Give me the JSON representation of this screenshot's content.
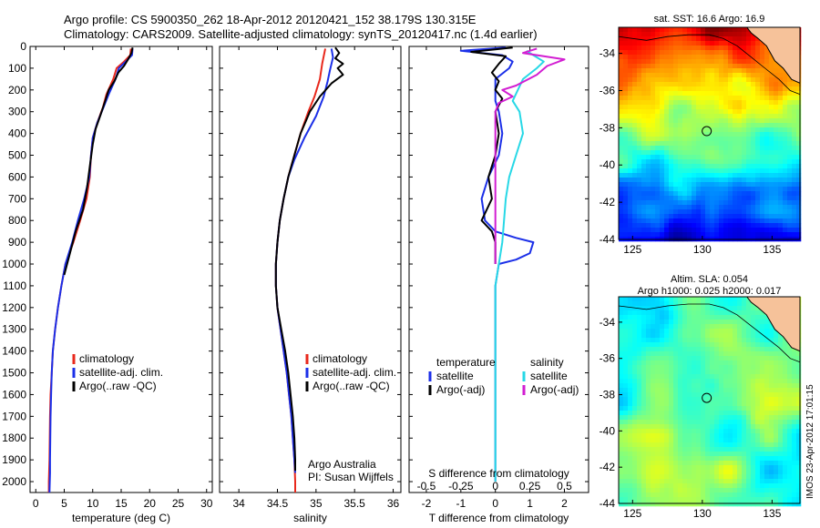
{
  "header": {
    "line1": "Argo profile: CS 5900350_262 18-Apr-2012 20120421_152 38.179S 130.315E",
    "line2": "Climatology: CARS2009. Satellite-adjusted climatology: synTS_20120417.nc (1.4d earlier)"
  },
  "side_label": "IMOS 23-Apr-2012 17:01:15",
  "colors": {
    "climatology": "#e8281c",
    "satellite": "#1b2fe8",
    "argo": "#000000",
    "sat_salinity": "#27d8e6",
    "argo_salinity": "#d21ed2",
    "land": "#f6c29a"
  },
  "chart_data": [
    {
      "type": "line",
      "id": "temperature",
      "xlabel": "temperature (deg C)",
      "ylabel": "",
      "xlim": [
        -1,
        31
      ],
      "ylim": [
        2050,
        0
      ],
      "xticks": [
        0,
        5,
        10,
        15,
        20,
        25,
        30
      ],
      "yticks": [
        0,
        100,
        200,
        300,
        400,
        500,
        600,
        700,
        800,
        900,
        1000,
        1100,
        1200,
        1300,
        1400,
        1500,
        1600,
        1700,
        1800,
        1900,
        2000
      ],
      "legend": [
        "climatology",
        "satellite-adj. clim.",
        "Argo(..raw -QC)"
      ],
      "series": [
        {
          "name": "climatology",
          "color": "#e8281c",
          "points": [
            [
              16.7,
              10
            ],
            [
              16.6,
              40
            ],
            [
              15.5,
              70
            ],
            [
              14.2,
              100
            ],
            [
              13.6,
              150
            ],
            [
              12.4,
              220
            ],
            [
              11.8,
              280
            ],
            [
              10.8,
              350
            ],
            [
              10.0,
              420
            ],
            [
              9.7,
              500
            ],
            [
              9.5,
              600
            ],
            [
              8.9,
              700
            ],
            [
              7.8,
              800
            ],
            [
              6.6,
              900
            ],
            [
              5.2,
              1000
            ],
            [
              4.5,
              1100
            ],
            [
              3.9,
              1200
            ],
            [
              3.4,
              1300
            ],
            [
              3.0,
              1400
            ],
            [
              2.8,
              1500
            ],
            [
              2.6,
              1600
            ],
            [
              2.5,
              1700
            ],
            [
              2.45,
              1800
            ],
            [
              2.4,
              1900
            ],
            [
              2.3,
              2000
            ],
            [
              2.3,
              2050
            ]
          ]
        },
        {
          "name": "satellite-adj. clim.",
          "color": "#1b2fe8",
          "points": [
            [
              17.0,
              10
            ],
            [
              16.9,
              40
            ],
            [
              15.8,
              70
            ],
            [
              14.6,
              100
            ],
            [
              14.0,
              150
            ],
            [
              12.8,
              220
            ],
            [
              11.9,
              280
            ],
            [
              10.8,
              350
            ],
            [
              10.0,
              420
            ],
            [
              9.7,
              500
            ],
            [
              9.4,
              600
            ],
            [
              8.5,
              700
            ],
            [
              7.4,
              800
            ],
            [
              6.4,
              900
            ],
            [
              5.2,
              1000
            ],
            [
              4.5,
              1100
            ],
            [
              3.9,
              1200
            ],
            [
              3.4,
              1300
            ],
            [
              3.0,
              1400
            ],
            [
              2.8,
              1500
            ],
            [
              2.7,
              1600
            ],
            [
              2.6,
              1700
            ],
            [
              2.55,
              1800
            ],
            [
              2.5,
              1900
            ],
            [
              2.5,
              1960
            ],
            [
              2.4,
              2050
            ]
          ]
        },
        {
          "name": "Argo(..raw -QC)",
          "color": "#000000",
          "points": [
            [
              17.0,
              5
            ],
            [
              16.8,
              30
            ],
            [
              16.2,
              60
            ],
            [
              15.5,
              90
            ],
            [
              14.5,
              120
            ],
            [
              13.8,
              160
            ],
            [
              12.8,
              200
            ],
            [
              12.2,
              250
            ],
            [
              11.3,
              320
            ],
            [
              10.5,
              380
            ],
            [
              10.0,
              450
            ],
            [
              9.5,
              550
            ],
            [
              9.0,
              650
            ],
            [
              8.3,
              750
            ],
            [
              7.0,
              850
            ],
            [
              6.0,
              950
            ],
            [
              5.0,
              1050
            ]
          ]
        }
      ]
    },
    {
      "type": "line",
      "id": "salinity",
      "xlabel": "salinity",
      "xlim": [
        33.75,
        36.1
      ],
      "ylim": [
        2050,
        0
      ],
      "xticks": [
        34,
        34.5,
        35,
        35.5,
        36
      ],
      "legend": [
        "climatology",
        "satellite-adj. clim.",
        "Argo(..raw -QC)"
      ],
      "annotations": [
        "Argo Australia",
        "PI: Susan Wijffels"
      ],
      "series": [
        {
          "name": "climatology",
          "color": "#e8281c",
          "points": [
            [
              35.12,
              10
            ],
            [
              35.08,
              80
            ],
            [
              35.05,
              150
            ],
            [
              34.98,
              230
            ],
            [
              34.9,
              300
            ],
            [
              34.8,
              400
            ],
            [
              34.72,
              500
            ],
            [
              34.64,
              600
            ],
            [
              34.58,
              700
            ],
            [
              34.53,
              800
            ],
            [
              34.5,
              900
            ],
            [
              34.48,
              1000
            ],
            [
              34.48,
              1100
            ],
            [
              34.5,
              1200
            ],
            [
              34.54,
              1300
            ],
            [
              34.58,
              1400
            ],
            [
              34.62,
              1500
            ],
            [
              34.65,
              1600
            ],
            [
              34.68,
              1700
            ],
            [
              34.7,
              1800
            ],
            [
              34.72,
              1900
            ],
            [
              34.73,
              2000
            ],
            [
              34.73,
              2050
            ]
          ]
        },
        {
          "name": "satellite-adj. clim.",
          "color": "#1b2fe8",
          "points": [
            [
              35.2,
              10
            ],
            [
              35.22,
              50
            ],
            [
              35.18,
              110
            ],
            [
              35.15,
              160
            ],
            [
              35.1,
              230
            ],
            [
              35.0,
              320
            ],
            [
              34.85,
              420
            ],
            [
              34.72,
              520
            ],
            [
              34.64,
              600
            ],
            [
              34.58,
              700
            ],
            [
              34.53,
              800
            ],
            [
              34.5,
              900
            ],
            [
              34.48,
              1000
            ],
            [
              34.48,
              1100
            ],
            [
              34.5,
              1200
            ],
            [
              34.54,
              1300
            ],
            [
              34.58,
              1400
            ],
            [
              34.62,
              1500
            ],
            [
              34.65,
              1600
            ],
            [
              34.68,
              1700
            ],
            [
              34.7,
              1800
            ],
            [
              34.72,
              1900
            ],
            [
              34.73,
              1960
            ]
          ]
        },
        {
          "name": "Argo(..raw -QC)",
          "color": "#000000",
          "points": [
            [
              35.25,
              5
            ],
            [
              35.3,
              30
            ],
            [
              35.25,
              55
            ],
            [
              35.35,
              80
            ],
            [
              35.28,
              100
            ],
            [
              35.35,
              130
            ],
            [
              35.2,
              170
            ],
            [
              35.05,
              230
            ],
            [
              34.92,
              300
            ],
            [
              34.8,
              400
            ],
            [
              34.72,
              500
            ],
            [
              34.64,
              600
            ],
            [
              34.58,
              700
            ],
            [
              34.53,
              800
            ],
            [
              34.5,
              900
            ],
            [
              34.48,
              1000
            ],
            [
              34.48,
              1100
            ],
            [
              34.5,
              1200
            ],
            [
              34.55,
              1300
            ],
            [
              34.6,
              1400
            ],
            [
              34.64,
              1500
            ],
            [
              34.67,
              1600
            ],
            [
              34.7,
              1700
            ],
            [
              34.72,
              1800
            ],
            [
              34.73,
              1900
            ],
            [
              34.73,
              1950
            ]
          ]
        }
      ]
    },
    {
      "type": "line",
      "id": "difference",
      "xlabel": "T difference from climatology",
      "xlabel_top": "S difference from climatology",
      "xlim": [
        -2.5,
        2.7
      ],
      "ylim": [
        2050,
        0
      ],
      "xticks": [
        -2,
        -1,
        0,
        1,
        2
      ],
      "xticks_top": [
        {
          "v": -0.5,
          "label": "-0.5"
        },
        {
          "v": -0.25,
          "label": "-0.25"
        },
        {
          "v": 0,
          "label": "0"
        },
        {
          "v": 0.25,
          "label": "0.25"
        },
        {
          "v": 0.5,
          "label": "0.5"
        }
      ],
      "legend_temperature": {
        "title": "temperature",
        "items": [
          "satellite",
          "Argo(-adj)"
        ]
      },
      "legend_salinity": {
        "title": "salinity",
        "items": [
          "satellite",
          "Argo(-adj)"
        ]
      },
      "series": [
        {
          "name": "satellite",
          "group": "temperature",
          "color": "#1b2fe8",
          "points": [
            [
              0.3,
              5
            ],
            [
              -1.0,
              20
            ],
            [
              0.2,
              40
            ],
            [
              0.5,
              70
            ],
            [
              0.4,
              100
            ],
            [
              0.0,
              150
            ],
            [
              0.0,
              250
            ],
            [
              0.1,
              300
            ],
            [
              0.2,
              400
            ],
            [
              0.1,
              500
            ],
            [
              -0.2,
              600
            ],
            [
              -0.4,
              700
            ],
            [
              -0.3,
              800
            ],
            [
              0.0,
              850
            ],
            [
              0.6,
              880
            ],
            [
              1.1,
              900
            ],
            [
              1.0,
              950
            ],
            [
              0.6,
              980
            ],
            [
              0.1,
              1000
            ],
            [
              0.0,
              1100
            ],
            [
              0.0,
              2000
            ]
          ]
        },
        {
          "name": "Argo(-adj)",
          "group": "temperature",
          "color": "#000000",
          "points": [
            [
              0.5,
              5
            ],
            [
              -0.7,
              25
            ],
            [
              0.3,
              45
            ],
            [
              0.1,
              80
            ],
            [
              -0.1,
              120
            ],
            [
              0.1,
              160
            ],
            [
              0.0,
              200
            ],
            [
              0.2,
              240
            ],
            [
              0.0,
              300
            ],
            [
              0.1,
              400
            ],
            [
              0.0,
              500
            ],
            [
              -0.2,
              600
            ],
            [
              -0.1,
              700
            ],
            [
              -0.4,
              800
            ],
            [
              -0.1,
              850
            ],
            [
              0.0,
              900
            ],
            [
              0.0,
              1000
            ]
          ]
        },
        {
          "name": "satellite",
          "group": "salinity",
          "color": "#27d8e6",
          "points": [
            [
              0.9,
              20
            ],
            [
              1.1,
              40
            ],
            [
              1.4,
              70
            ],
            [
              1.2,
              100
            ],
            [
              0.8,
              150
            ],
            [
              0.5,
              250
            ],
            [
              0.7,
              300
            ],
            [
              0.8,
              400
            ],
            [
              0.6,
              500
            ],
            [
              0.4,
              600
            ],
            [
              0.3,
              700
            ],
            [
              0.25,
              800
            ],
            [
              0.2,
              900
            ],
            [
              0.1,
              1000
            ],
            [
              0.0,
              1100
            ],
            [
              0.0,
              2000
            ]
          ]
        },
        {
          "name": "Argo(-adj)",
          "group": "salinity",
          "color": "#d21ed2",
          "points": [
            [
              1.2,
              10
            ],
            [
              0.8,
              30
            ],
            [
              2.0,
              60
            ],
            [
              1.5,
              90
            ],
            [
              1.2,
              130
            ],
            [
              0.6,
              180
            ],
            [
              0.2,
              200
            ],
            [
              0.5,
              230
            ],
            [
              0.1,
              260
            ],
            [
              0.0,
              300
            ],
            [
              0.0,
              400
            ],
            [
              0.0,
              500
            ],
            [
              0.0,
              700
            ],
            [
              0.0,
              900
            ],
            [
              0.0,
              1000
            ]
          ]
        }
      ]
    }
  ],
  "maps": [
    {
      "id": "sst-map",
      "title": "sat. SST: 16.6 Argo: 16.9",
      "lon": [
        124,
        137
      ],
      "lat": [
        -44,
        -32.6
      ],
      "xticks": [
        125,
        130,
        135
      ],
      "yticks": [
        -34,
        -36,
        -38,
        -40,
        -42,
        -44
      ],
      "argo_marker": {
        "lon": 130.315,
        "lat": -38.179
      }
    },
    {
      "id": "sla-map",
      "title_line1": "Altim. SLA: 0.054",
      "title_line2": "Argo h1000: 0.025 h2000: 0.017",
      "lon": [
        124,
        137
      ],
      "lat": [
        -44,
        -32.6
      ],
      "xticks": [
        125,
        130,
        135
      ],
      "yticks": [
        -34,
        -36,
        -38,
        -40,
        -42,
        -44
      ],
      "argo_marker": {
        "lon": 130.315,
        "lat": -38.179
      }
    }
  ]
}
